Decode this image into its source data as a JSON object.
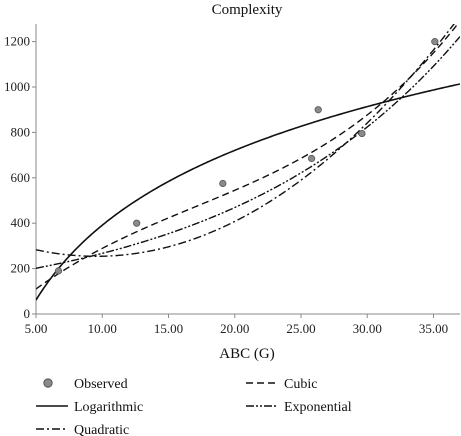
{
  "chart_data": {
    "type": "scatter",
    "title": "Complexity",
    "xlabel": "ABC (G)",
    "ylabel": "",
    "xlim": [
      5.0,
      37.0
    ],
    "ylim": [
      0,
      1260
    ],
    "x_ticks": [
      5.0,
      10.0,
      15.0,
      20.0,
      25.0,
      30.0,
      35.0
    ],
    "x_tick_labels": [
      "5.00",
      "10.00",
      "15.00",
      "20.00",
      "25.00",
      "30.00",
      "35.00"
    ],
    "y_ticks": [
      0,
      200,
      400,
      600,
      800,
      1000,
      1200
    ],
    "y_tick_labels": [
      "0",
      "200",
      "400",
      "600",
      "800",
      "1000",
      "1200"
    ],
    "grid": false,
    "legend_position": "bottom",
    "observed": {
      "name": "Observed",
      "x": [
        6.7,
        12.6,
        19.1,
        25.8,
        26.3,
        29.6,
        35.1
      ],
      "y": [
        190,
        400,
        575,
        685,
        900,
        795,
        1200
      ]
    },
    "series": [
      {
        "name": "Logarithmic",
        "style": "solid",
        "a": -704.14,
        "b": 475.66,
        "model": "a + b*ln(x)"
      },
      {
        "name": "Quadratic",
        "style": "dashdot",
        "a": 381.76,
        "b": -26.75,
        "c": 1.4025,
        "model": "a + b*x + c*x^2"
      },
      {
        "name": "Cubic",
        "style": "dashed",
        "a": -144.66,
        "b": 60.7,
        "c": -2.156,
        "d": 0.04226,
        "model": "a + b*x + c*x^2 + d*x^3"
      },
      {
        "name": "Exponential",
        "style": "dashdotdot",
        "a": 152.06,
        "b": 0.05633,
        "model": "a*exp(b*x)"
      }
    ]
  }
}
